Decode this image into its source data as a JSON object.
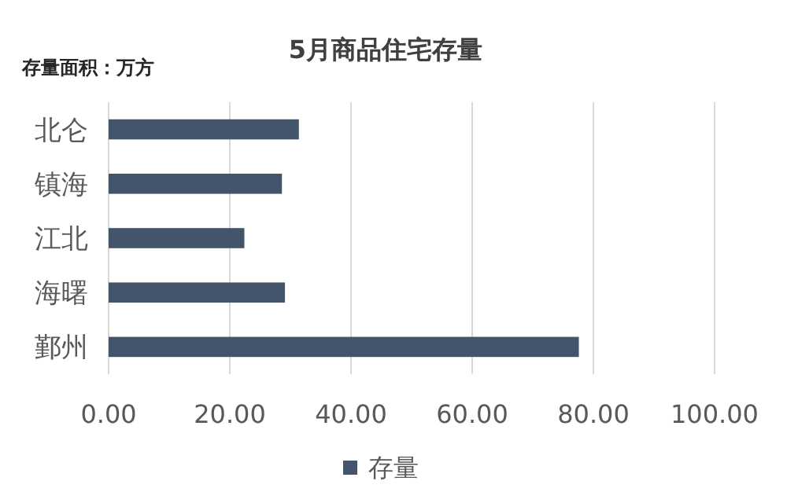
{
  "chart_data": {
    "type": "bar",
    "orientation": "horizontal",
    "title": "5月商品住宅存量",
    "annotations": [
      "存量面积：万方"
    ],
    "categories": [
      "北仑",
      "镇海",
      "江北",
      "海曙",
      "鄞州"
    ],
    "series": [
      {
        "name": "存量",
        "color": "#44546a",
        "values": [
          31.4,
          28.6,
          22.4,
          29.1,
          77.6
        ]
      }
    ],
    "xlim": [
      0,
      100
    ],
    "xticks": [
      {
        "value": 0,
        "label": "0.00"
      },
      {
        "value": 20,
        "label": "20.00"
      },
      {
        "value": 40,
        "label": "40.00"
      },
      {
        "value": 60,
        "label": "60.00"
      },
      {
        "value": 80,
        "label": "80.00"
      },
      {
        "value": 100,
        "label": "100.00"
      }
    ],
    "grid": "x",
    "legend": "bottom"
  }
}
